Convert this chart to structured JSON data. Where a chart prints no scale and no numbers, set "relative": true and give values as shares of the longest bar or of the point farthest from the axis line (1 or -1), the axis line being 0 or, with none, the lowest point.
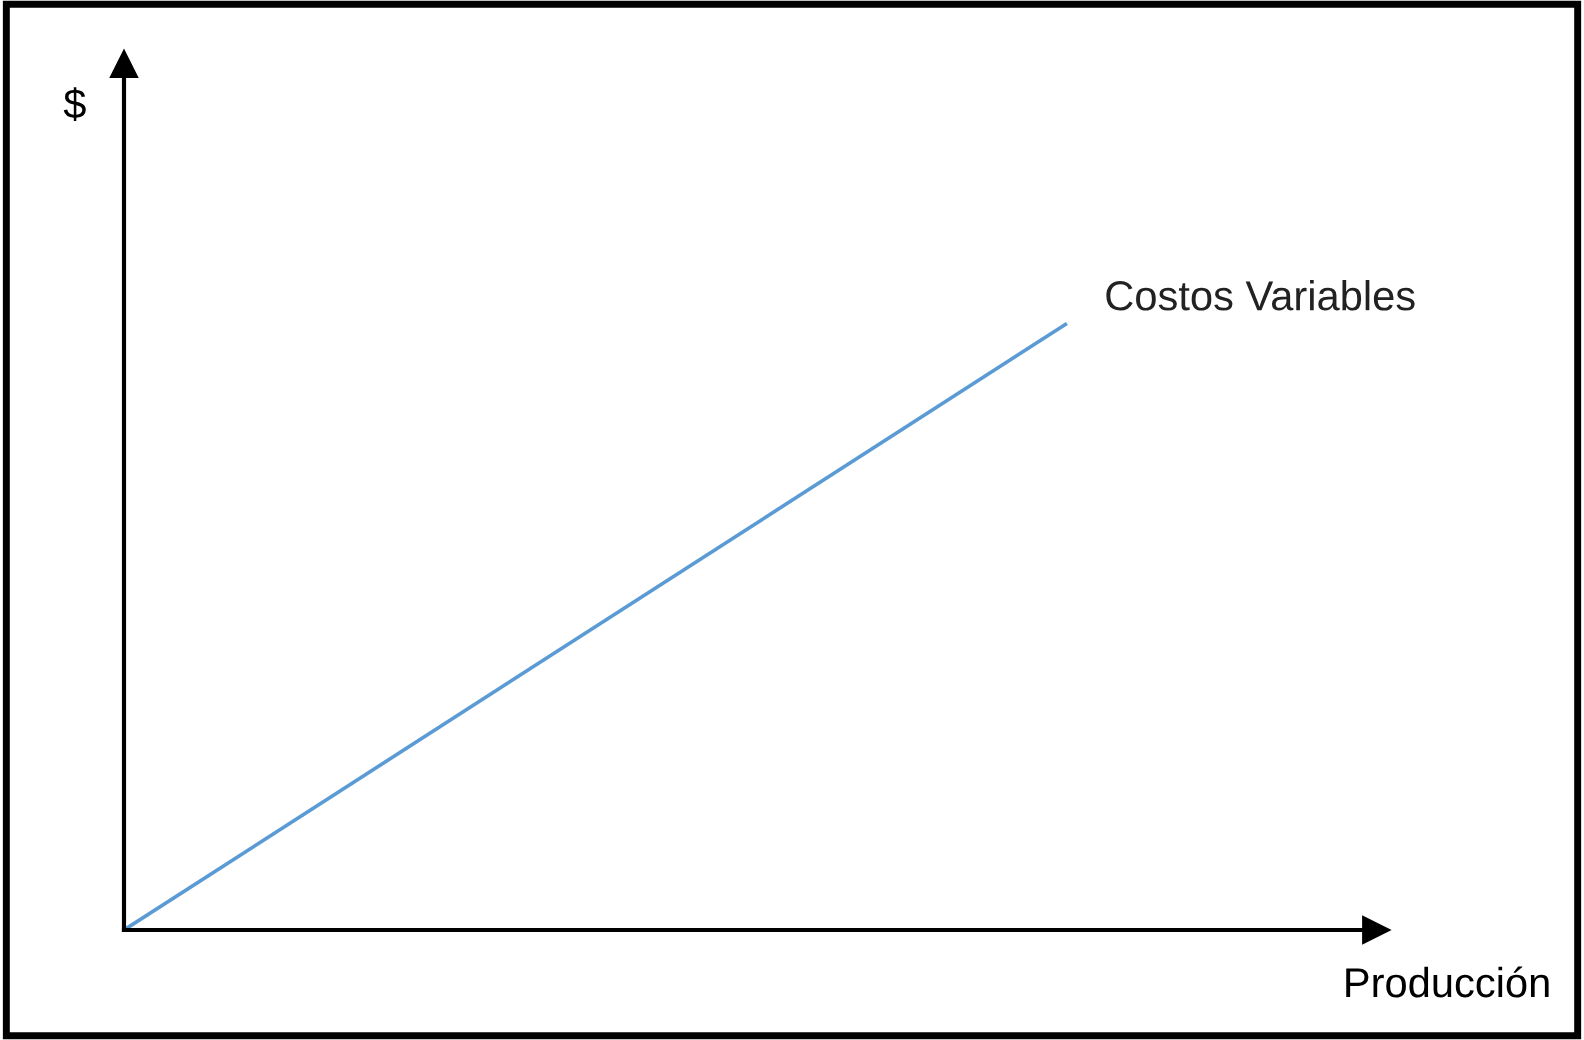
{
  "chart_data": {
    "type": "line",
    "relative": true,
    "xlabel": "Producción",
    "ylabel": "$",
    "categories": [
      null,
      null
    ],
    "series": [
      {
        "name": "Costos Variables",
        "color": "#5b9bd5",
        "values": [
          0,
          1
        ]
      }
    ]
  }
}
